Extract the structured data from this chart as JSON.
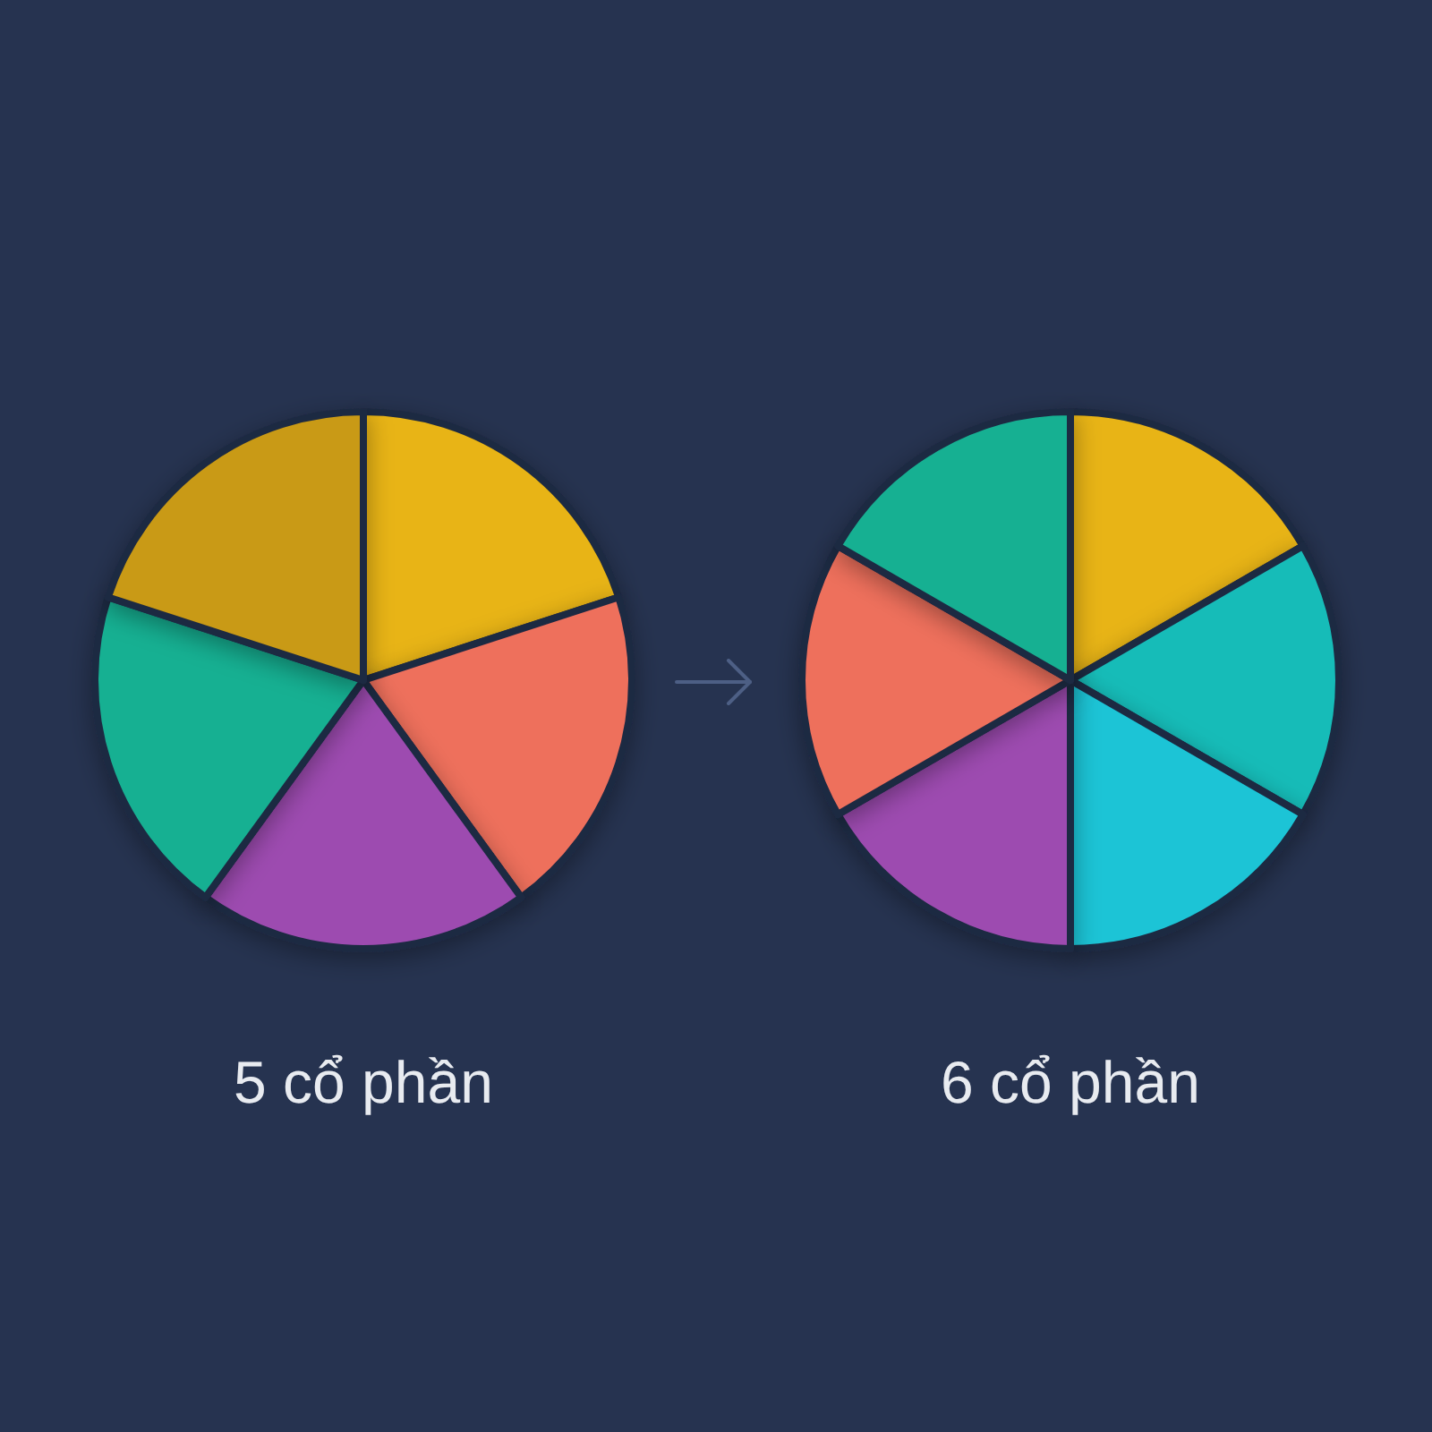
{
  "chart_data": [
    {
      "type": "pie",
      "title": "5 cổ phần",
      "categories": [
        null,
        null,
        null,
        null,
        null
      ],
      "values": [
        20,
        20,
        20,
        20,
        20
      ],
      "colors": [
        "#e8b412",
        "#ee6f5c",
        "#9d4cb0",
        "#18b092",
        "#c99a12"
      ]
    },
    {
      "type": "pie",
      "title": "6 cổ phần",
      "categories": [
        null,
        null,
        null,
        null,
        null,
        null
      ],
      "values": [
        16.67,
        16.67,
        16.67,
        16.67,
        16.67,
        16.67
      ],
      "colors": [
        "#e8b412",
        "#17bcb8",
        "#1ac4d6",
        "#9d4cb0",
        "#ee6f5c",
        "#18b092"
      ]
    }
  ]
}
